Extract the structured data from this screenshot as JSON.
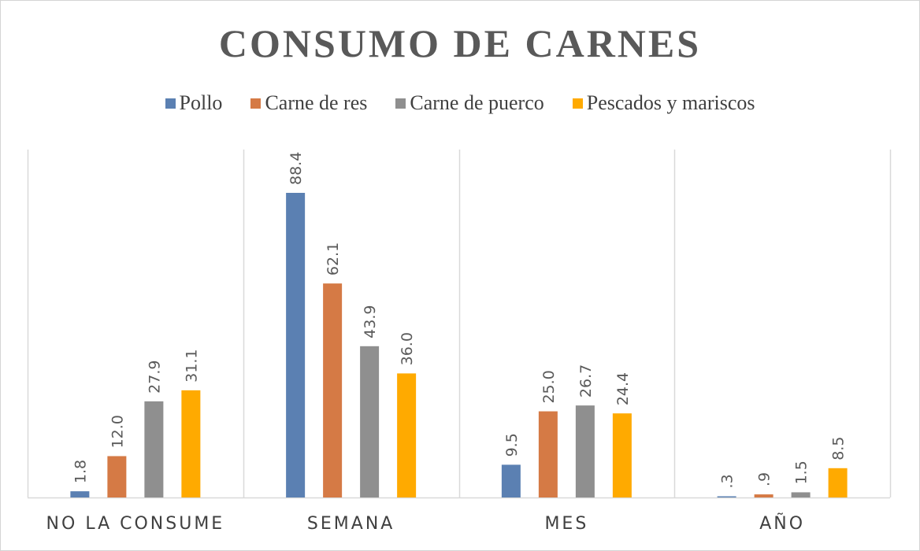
{
  "chart_data": {
    "type": "bar",
    "title": "CONSUMO DE CARNES",
    "categories": [
      "NO LA CONSUME",
      "SEMANA",
      "MES",
      "AÑO"
    ],
    "series": [
      {
        "name": "Pollo",
        "color": "#5b80b2",
        "values": [
          1.8,
          88.4,
          9.5,
          0.3
        ],
        "labels": [
          "1.8",
          "88.4",
          "9.5",
          ".3"
        ]
      },
      {
        "name": "Carne de res",
        "color": "#d57a45",
        "values": [
          12.0,
          62.1,
          25.0,
          0.9
        ],
        "labels": [
          "12.0",
          "62.1",
          "25.0",
          ".9"
        ]
      },
      {
        "name": "Carne de puerco",
        "color": "#8f8f8f",
        "values": [
          27.9,
          43.9,
          26.7,
          1.5
        ],
        "labels": [
          "27.9",
          "43.9",
          "26.7",
          "1.5"
        ]
      },
      {
        "name": "Pescados y mariscos",
        "color": "#ffaa00",
        "values": [
          31.1,
          36.0,
          24.4,
          8.5
        ],
        "labels": [
          "31.1",
          "36.0",
          "24.4",
          "8.5"
        ]
      }
    ],
    "ylim": [
      0,
      100
    ],
    "legend_position": "top",
    "grid": "vertical category separators"
  }
}
